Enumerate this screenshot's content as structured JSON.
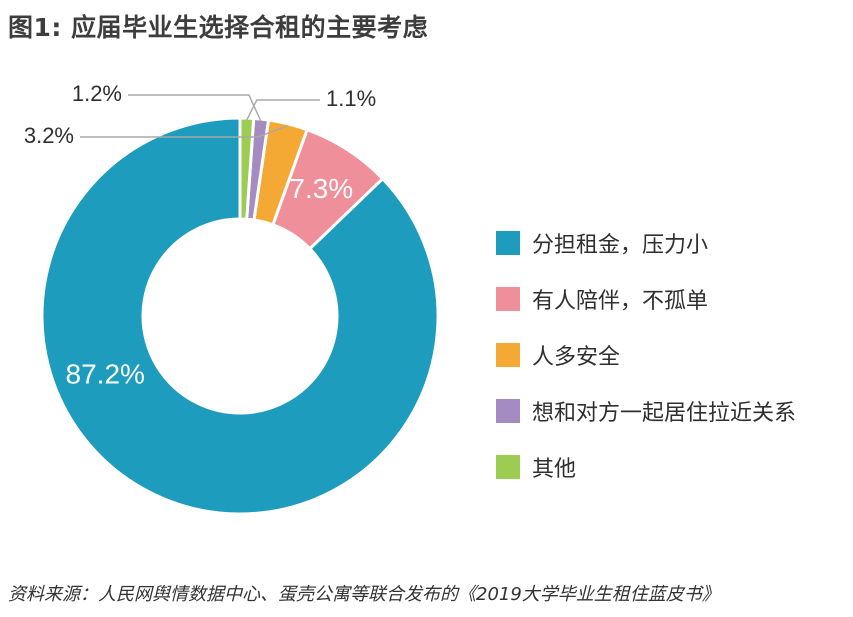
{
  "title": "图1: 应届毕业生选择合租的主要考虑",
  "source": "资料来源：人民网舆情数据中心、蛋壳公寓等联合发布的《2019大学毕业生租住蓝皮书》",
  "chart_data": {
    "type": "pie",
    "donut": true,
    "title": "图1: 应届毕业生选择合租的主要考虑",
    "unit": "%",
    "categories": [
      "分担租金，压力小",
      "有人陪伴，不孤单",
      "人多安全",
      "想和对方一起居住拉近关系",
      "其他"
    ],
    "values": [
      87.2,
      7.3,
      3.2,
      1.2,
      1.1
    ],
    "data_labels": [
      "87.2%",
      "7.3%",
      "3.2%",
      "1.2%",
      "1.1%"
    ],
    "colors": [
      "#1d9cbd",
      "#ee8f99",
      "#f3a934",
      "#a48bc2",
      "#9ccc51"
    ],
    "legend_position": "right"
  }
}
